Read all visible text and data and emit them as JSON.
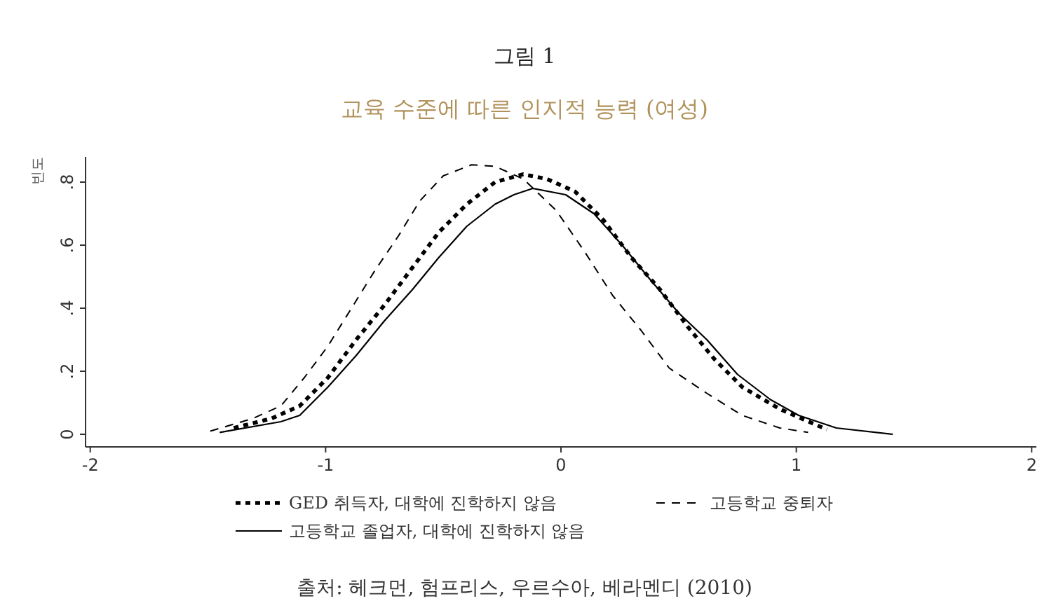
{
  "chart_data": {
    "type": "line",
    "title": "그림 1",
    "subtitle": "교육 수준에 따른 인지적 능력 (여성)",
    "ylabel": "빈도",
    "annotations": [
      "출처: 헤크먼, 험프리스, 우르수아, 베라멘디 (2010)"
    ],
    "xlim": [
      -2.02,
      2.02
    ],
    "ylim": [
      -0.04,
      0.88
    ],
    "xticks": [
      -2,
      -1,
      0,
      1,
      2
    ],
    "yticks": [
      {
        "value": 0,
        "label": "0"
      },
      {
        "value": 0.2,
        "label": ".2"
      },
      {
        "value": 0.4,
        "label": ".4"
      },
      {
        "value": 0.6,
        "label": ".6"
      },
      {
        "value": 0.8,
        "label": ".8"
      }
    ],
    "grid": false,
    "legend": "bottom",
    "marker": "none",
    "series": [
      {
        "name": "GED 취득자, 대학에 진학하지 않음",
        "color": "#000000",
        "line_style": "dotted",
        "x": [
          -1.39,
          -1.23,
          -1.11,
          -0.99,
          -0.87,
          -0.75,
          -0.63,
          -0.52,
          -0.4,
          -0.28,
          -0.16,
          -0.06,
          0.06,
          0.18,
          0.3,
          0.42,
          0.54,
          0.65,
          0.77,
          0.93,
          1.13
        ],
        "values": [
          0.02,
          0.05,
          0.09,
          0.18,
          0.3,
          0.41,
          0.53,
          0.64,
          0.73,
          0.8,
          0.825,
          0.81,
          0.77,
          0.68,
          0.56,
          0.46,
          0.34,
          0.24,
          0.15,
          0.08,
          0.015
        ]
      },
      {
        "name": "고등학교 중퇴자",
        "color": "#000000",
        "line_style": "dashed",
        "x": [
          -1.49,
          -1.31,
          -1.19,
          -1.09,
          -0.99,
          -0.89,
          -0.79,
          -0.69,
          -0.6,
          -0.5,
          -0.38,
          -0.28,
          -0.16,
          -0.02,
          0.1,
          0.22,
          0.34,
          0.46,
          0.62,
          0.77,
          0.93,
          1.05
        ],
        "values": [
          0.01,
          0.05,
          0.09,
          0.18,
          0.28,
          0.4,
          0.52,
          0.63,
          0.74,
          0.82,
          0.855,
          0.85,
          0.81,
          0.71,
          0.58,
          0.44,
          0.33,
          0.21,
          0.13,
          0.06,
          0.02,
          0.006
        ]
      },
      {
        "name": "고등학교 졸업자, 대학에 진학하지 않음",
        "color": "#000000",
        "line_style": "solid",
        "x": [
          -1.45,
          -1.19,
          -1.11,
          -0.99,
          -0.87,
          -0.75,
          -0.63,
          -0.52,
          -0.4,
          -0.28,
          -0.2,
          -0.12,
          0.02,
          0.14,
          0.26,
          0.38,
          0.5,
          0.62,
          0.75,
          0.89,
          1.01,
          1.17,
          1.41
        ],
        "values": [
          0.006,
          0.04,
          0.06,
          0.15,
          0.25,
          0.36,
          0.46,
          0.56,
          0.66,
          0.73,
          0.76,
          0.78,
          0.76,
          0.7,
          0.6,
          0.49,
          0.385,
          0.3,
          0.19,
          0.11,
          0.06,
          0.02,
          0.0
        ]
      }
    ]
  }
}
